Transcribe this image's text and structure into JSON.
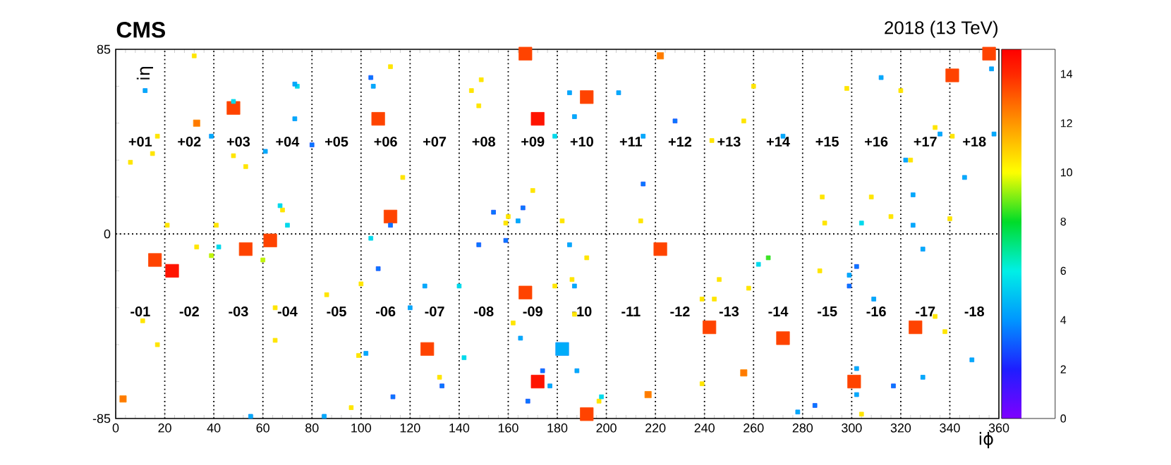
{
  "chart_data": {
    "type": "bubble",
    "title": "CMS",
    "subtitle": "2018 (13 TeV)",
    "xlabel": "iϕ",
    "ylabel": "iη",
    "xlim": [
      0,
      360
    ],
    "ylim": [
      -85,
      85
    ],
    "xticks": [
      0,
      20,
      40,
      60,
      80,
      100,
      120,
      140,
      160,
      180,
      200,
      220,
      240,
      260,
      280,
      300,
      320,
      340,
      360
    ],
    "yticks": [
      -85,
      0,
      85
    ],
    "clim": [
      0,
      15
    ],
    "cticks": [
      0,
      2,
      4,
      6,
      8,
      10,
      12,
      14
    ],
    "marker": "square",
    "series": [
      {
        "x": [
          16,
          23,
          53,
          63,
          48,
          107,
          112,
          167,
          172,
          192,
          341,
          356,
          167,
          127,
          182,
          172,
          192,
          222,
          242,
          272,
          301,
          326
        ],
        "values": [
          -12,
          -17,
          -7,
          -3,
          58,
          53,
          8,
          83,
          53,
          63,
          73,
          83,
          -27,
          -53,
          -53,
          -68,
          -83,
          -7,
          -43,
          -48,
          -68,
          -43
        ],
        "cvalues": [
          13.5,
          14.5,
          13.5,
          13.5,
          13.5,
          13.5,
          13.5,
          13.5,
          14.5,
          13.5,
          13.5,
          13.5,
          13.5,
          13.5,
          4.5,
          14.5,
          13.5,
          13.5,
          13.5,
          13.5,
          13.5,
          13.5
        ],
        "colors": [
          "#ff4a00",
          "#ff1400",
          "#ff4a00",
          "#ff4a00",
          "#ff4a00",
          "#ff4a00",
          "#ff4a00",
          "#ff4a00",
          "#ff1400",
          "#ff4a00",
          "#ff4a00",
          "#ff4a00",
          "#ff4a00",
          "#ff4a00",
          "#0096ff",
          "#ff1400",
          "#ff4a00",
          "#ff4a00",
          "#ff4a00",
          "#ff4a00",
          "#ff4a00",
          "#ff4a00"
        ],
        "sizes": [
          1,
          1,
          1,
          1,
          1,
          1,
          1,
          1,
          1,
          1,
          1,
          1,
          1,
          1,
          1,
          1,
          1,
          1,
          1,
          1,
          1,
          1
        ]
      },
      {
        "x": [
          33,
          222,
          3,
          217,
          256
        ],
        "values": [
          51,
          82,
          -76,
          -74,
          -64
        ],
        "cvalues": [
          12.5,
          12.5,
          12.5,
          12.5,
          12.5
        ],
        "color": "#ff8c00",
        "sizes": [
          0.25,
          0.25,
          0.25,
          0.25,
          0.25
        ]
      },
      {
        "x": [
          32,
          17,
          15,
          6,
          48,
          53,
          68,
          21,
          41,
          112,
          117,
          33,
          11,
          17,
          65,
          65,
          86,
          100,
          99,
          96,
          149,
          145,
          148,
          170,
          160,
          159,
          182,
          214,
          192,
          186,
          179,
          187,
          162,
          132,
          197,
          239,
          239,
          260,
          256,
          243,
          298,
          320,
          334,
          341,
          324,
          288,
          289,
          308,
          316,
          340,
          246,
          258,
          244,
          287,
          334,
          338,
          304
        ],
        "values": [
          82,
          45,
          37,
          33,
          36,
          31,
          11,
          4,
          4,
          77,
          26,
          -6,
          -40,
          -51,
          -34,
          -49,
          -28,
          -23,
          -56,
          -80,
          71,
          66,
          59,
          20,
          8,
          5,
          6,
          6,
          -11,
          -21,
          -24,
          -37,
          -41,
          -66,
          -77,
          -30,
          -69,
          68,
          52,
          43,
          67,
          66,
          49,
          45,
          34,
          17,
          5,
          17,
          8,
          7,
          -21,
          -25,
          -30,
          -17,
          -38,
          -45,
          -83
        ],
        "cvalues": [
          10.5,
          10.5,
          10.5,
          10.5,
          10.5,
          10.5,
          10.5,
          10.5,
          10.5,
          10.5,
          10.5,
          10.5,
          10.5,
          10.5,
          10.5,
          10.5,
          10.5,
          10.5,
          10.5,
          10.5,
          10.5,
          10.5,
          10.5,
          10.5,
          10.5,
          10.5,
          10.5,
          10.5,
          10.5,
          10.5,
          10.5,
          10.5,
          10.5,
          10.5,
          10.5,
          10.5,
          10.5,
          10.5,
          10.5,
          10.5,
          10.5,
          10.5,
          10.5,
          10.5,
          10.5,
          10.5,
          10.5,
          10.5,
          10.5,
          10.5,
          10.5,
          10.5,
          10.5,
          10.5,
          10.5,
          10.5,
          10.5
        ],
        "color": "#ffe600",
        "sizes": [
          0.1,
          0.1,
          0.1,
          0.1,
          0.1,
          0.1,
          0.1,
          0.1,
          0.1,
          0.1,
          0.1,
          0.1,
          0.1,
          0.1,
          0.1,
          0.1,
          0.1,
          0.1,
          0.1,
          0.1,
          0.1,
          0.1,
          0.1,
          0.1,
          0.1,
          0.1,
          0.1,
          0.1,
          0.1,
          0.1,
          0.1,
          0.1,
          0.1,
          0.1,
          0.1,
          0.1,
          0.1,
          0.1,
          0.1,
          0.1,
          0.1,
          0.1,
          0.1,
          0.1,
          0.1,
          0.1,
          0.1,
          0.1,
          0.1,
          0.1,
          0.1,
          0.1,
          0.1,
          0.1,
          0.1,
          0.1,
          0.1
        ]
      },
      {
        "x": [
          39,
          60,
          266
        ],
        "values": [
          -10,
          -12,
          -11
        ],
        "cvalues": [
          9.5,
          9.5,
          8.5
        ],
        "colors": [
          "#c0f000",
          "#c0f000",
          "#30e030"
        ],
        "sizes": [
          0.1,
          0.1,
          0.1
        ]
      },
      {
        "x": [
          48,
          74,
          67,
          70,
          179,
          42,
          104,
          140,
          142,
          198,
          262,
          304
        ],
        "values": [
          61,
          68,
          13,
          4,
          45,
          -6,
          -2,
          -24,
          -57,
          -75,
          -14,
          5
        ],
        "cvalues": [
          5.5,
          5.5,
          5.5,
          5.5,
          5.5,
          5.5,
          5.5,
          5.5,
          5.5,
          5.5,
          5.5,
          5.5
        ],
        "color": "#00d8ea",
        "sizes": [
          0.1,
          0.1,
          0.1,
          0.1,
          0.1,
          0.1,
          0.1,
          0.1,
          0.1,
          0.1,
          0.1,
          0.1
        ]
      },
      {
        "x": [
          12,
          39,
          73,
          73,
          61,
          105,
          185,
          187,
          205,
          215,
          164,
          102,
          120,
          85,
          55,
          126,
          165,
          185,
          187,
          177,
          188,
          272,
          312,
          336,
          322,
          346,
          325,
          325,
          358,
          357,
          299,
          309,
          329,
          349,
          302,
          302,
          329,
          278
        ],
        "values": [
          66,
          45,
          69,
          53,
          38,
          68,
          65,
          54,
          65,
          45,
          6,
          -55,
          -34,
          -84,
          -84,
          -24,
          -48,
          -5,
          -24,
          -70,
          -63,
          45,
          72,
          46,
          34,
          26,
          18,
          4,
          46,
          76,
          -19,
          -30,
          -7,
          -58,
          -62,
          -74,
          -66,
          -82
        ],
        "cvalues": [
          4.5,
          4.5,
          4.5,
          4.5,
          4.5,
          4.5,
          4.5,
          4.5,
          4.5,
          4.5,
          4.5,
          4.5,
          4.5,
          4.5,
          4.5,
          4.5,
          4.5,
          4.5,
          4.5,
          4.5,
          4.5,
          4.5,
          4.5,
          4.5,
          4.5,
          4.5,
          4.5,
          4.5,
          4.5,
          4.5,
          4.5,
          4.5,
          4.5,
          4.5,
          4.5,
          4.5,
          4.5,
          4.5
        ],
        "color": "#0096ff",
        "sizes": [
          0.1,
          0.1,
          0.1,
          0.1,
          0.1,
          0.1,
          0.1,
          0.1,
          0.1,
          0.1,
          0.1,
          0.1,
          0.1,
          0.1,
          0.1,
          0.1,
          0.1,
          0.1,
          0.1,
          0.1,
          0.1,
          0.1,
          0.1,
          0.1,
          0.1,
          0.1,
          0.1,
          0.1,
          0.1,
          0.1,
          0.1,
          0.1,
          0.1,
          0.1,
          0.1,
          0.1,
          0.1,
          0.1
        ]
      },
      {
        "x": [
          80,
          104,
          112,
          107,
          113,
          228,
          166,
          154,
          215,
          148,
          159,
          174,
          168,
          133,
          302,
          299,
          317,
          285
        ],
        "values": [
          41,
          72,
          4,
          -16,
          -75,
          52,
          12,
          10,
          23,
          -5,
          -3,
          -63,
          -77,
          -70,
          -15,
          -24,
          -70,
          -79
        ],
        "cvalues": [
          3.5,
          3.5,
          3.5,
          3.5,
          3.5,
          3.5,
          3.5,
          3.5,
          3.5,
          3.5,
          3.5,
          3.5,
          3.5,
          3.5,
          3.5,
          3.5,
          3.5,
          3.5
        ],
        "color": "#1a50ff",
        "sizes": [
          0.1,
          0.1,
          0.1,
          0.1,
          0.1,
          0.1,
          0.1,
          0.1,
          0.1,
          0.1,
          0.1,
          0.1,
          0.1,
          0.1,
          0.1,
          0.1,
          0.1,
          0.1
        ]
      }
    ],
    "ref_lines": [
      {
        "axis": "x",
        "value": 20,
        "color": "#000000",
        "line_style": "dotted"
      },
      {
        "axis": "x",
        "value": 40,
        "color": "#000000",
        "line_style": "dotted"
      },
      {
        "axis": "x",
        "value": 60,
        "color": "#000000",
        "line_style": "dotted"
      },
      {
        "axis": "x",
        "value": 80,
        "color": "#000000",
        "line_style": "dotted"
      },
      {
        "axis": "x",
        "value": 100,
        "color": "#000000",
        "line_style": "dotted"
      },
      {
        "axis": "x",
        "value": 120,
        "color": "#000000",
        "line_style": "dotted"
      },
      {
        "axis": "x",
        "value": 140,
        "color": "#000000",
        "line_style": "dotted"
      },
      {
        "axis": "x",
        "value": 160,
        "color": "#000000",
        "line_style": "dotted"
      },
      {
        "axis": "x",
        "value": 180,
        "color": "#000000",
        "line_style": "dotted"
      },
      {
        "axis": "x",
        "value": 200,
        "color": "#000000",
        "line_style": "dotted"
      },
      {
        "axis": "x",
        "value": 220,
        "color": "#000000",
        "line_style": "dotted"
      },
      {
        "axis": "x",
        "value": 240,
        "color": "#000000",
        "line_style": "dotted"
      },
      {
        "axis": "x",
        "value": 260,
        "color": "#000000",
        "line_style": "dotted"
      },
      {
        "axis": "x",
        "value": 280,
        "color": "#000000",
        "line_style": "dotted"
      },
      {
        "axis": "x",
        "value": 300,
        "color": "#000000",
        "line_style": "dotted"
      },
      {
        "axis": "x",
        "value": 320,
        "color": "#000000",
        "line_style": "dotted"
      },
      {
        "axis": "x",
        "value": 340,
        "color": "#000000",
        "line_style": "dotted"
      },
      {
        "axis": "y",
        "value": 0,
        "color": "#000000",
        "line_style": "dotted"
      }
    ],
    "annotations": [
      "+01",
      "+02",
      "+03",
      "+04",
      "+05",
      "+06",
      "+07",
      "+08",
      "+09",
      "+10",
      "+11",
      "+12",
      "+13",
      "+14",
      "+15",
      "+16",
      "+17",
      "+18",
      "-01",
      "-02",
      "-03",
      "-04",
      "-05",
      "-06",
      "-07",
      "-08",
      "-09",
      "-10",
      "-11",
      "-12",
      "-13",
      "-14",
      "-15",
      "-16",
      "-17",
      "-18"
    ]
  }
}
